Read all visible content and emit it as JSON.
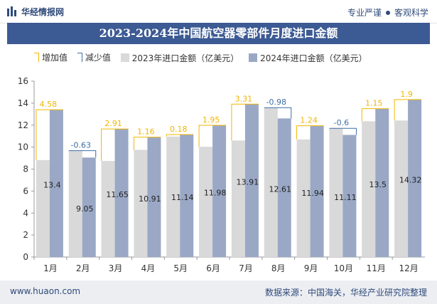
{
  "header": {
    "logo_text": "华经情报网",
    "right_text_1": "专业严谨",
    "right_text_2": "客观科学"
  },
  "title": "2023-2024年中国航空器零部件月度进口金额",
  "legend": {
    "increase": "增加值",
    "decrease": "减少值",
    "s2023": "2023年进口金额（亿美元）",
    "s2024": "2024年进口金额（亿美元）"
  },
  "footer": {
    "left": "www.huaon.com",
    "right": "数据来源：中国海关，华经产业研究院整理"
  },
  "colors": {
    "bar2023": "#d9d9d9",
    "bar2024": "#9aa8c6",
    "increase": "#f2b600",
    "decrease": "#3f6fa6",
    "title_bg": "#3c5a93"
  },
  "chart_data": {
    "type": "bar",
    "categories": [
      "1月",
      "2月",
      "3月",
      "4月",
      "5月",
      "6月",
      "7月",
      "8月",
      "9月",
      "10月",
      "11月",
      "12月"
    ],
    "series": [
      {
        "name": "2023年进口金额（亿美元）",
        "values": [
          8.82,
          9.68,
          8.74,
          9.75,
          10.96,
          10.03,
          10.6,
          13.59,
          10.7,
          11.71,
          12.35,
          12.42
        ]
      },
      {
        "name": "2024年进口金额（亿美元）",
        "values": [
          13.4,
          9.05,
          11.65,
          10.91,
          11.14,
          11.98,
          13.91,
          12.61,
          11.94,
          11.11,
          13.5,
          14.32
        ]
      }
    ],
    "changes": [
      4.58,
      -0.63,
      2.91,
      1.16,
      0.18,
      1.95,
      3.31,
      -0.98,
      1.24,
      -0.6,
      1.15,
      1.9
    ],
    "change_labels": [
      "4.58",
      "-0.63",
      "2.91",
      "1.16",
      "0.18",
      "1.95",
      "3.31",
      "-0.98",
      "1.24",
      "-0.6",
      "1.15",
      "1.9"
    ],
    "value_labels_2024": [
      "13.4",
      "9.05",
      "11.65",
      "10.91",
      "11.14",
      "11.98",
      "13.91",
      "12.61",
      "11.94",
      "11.11",
      "13.5",
      "14.32"
    ],
    "ylim": [
      0,
      16
    ],
    "yticks": [
      "0",
      "2",
      "4",
      "6",
      "8",
      "10",
      "12",
      "14",
      "16"
    ],
    "ytick_values": [
      0,
      2,
      4,
      6,
      8,
      10,
      12,
      14,
      16
    ]
  }
}
